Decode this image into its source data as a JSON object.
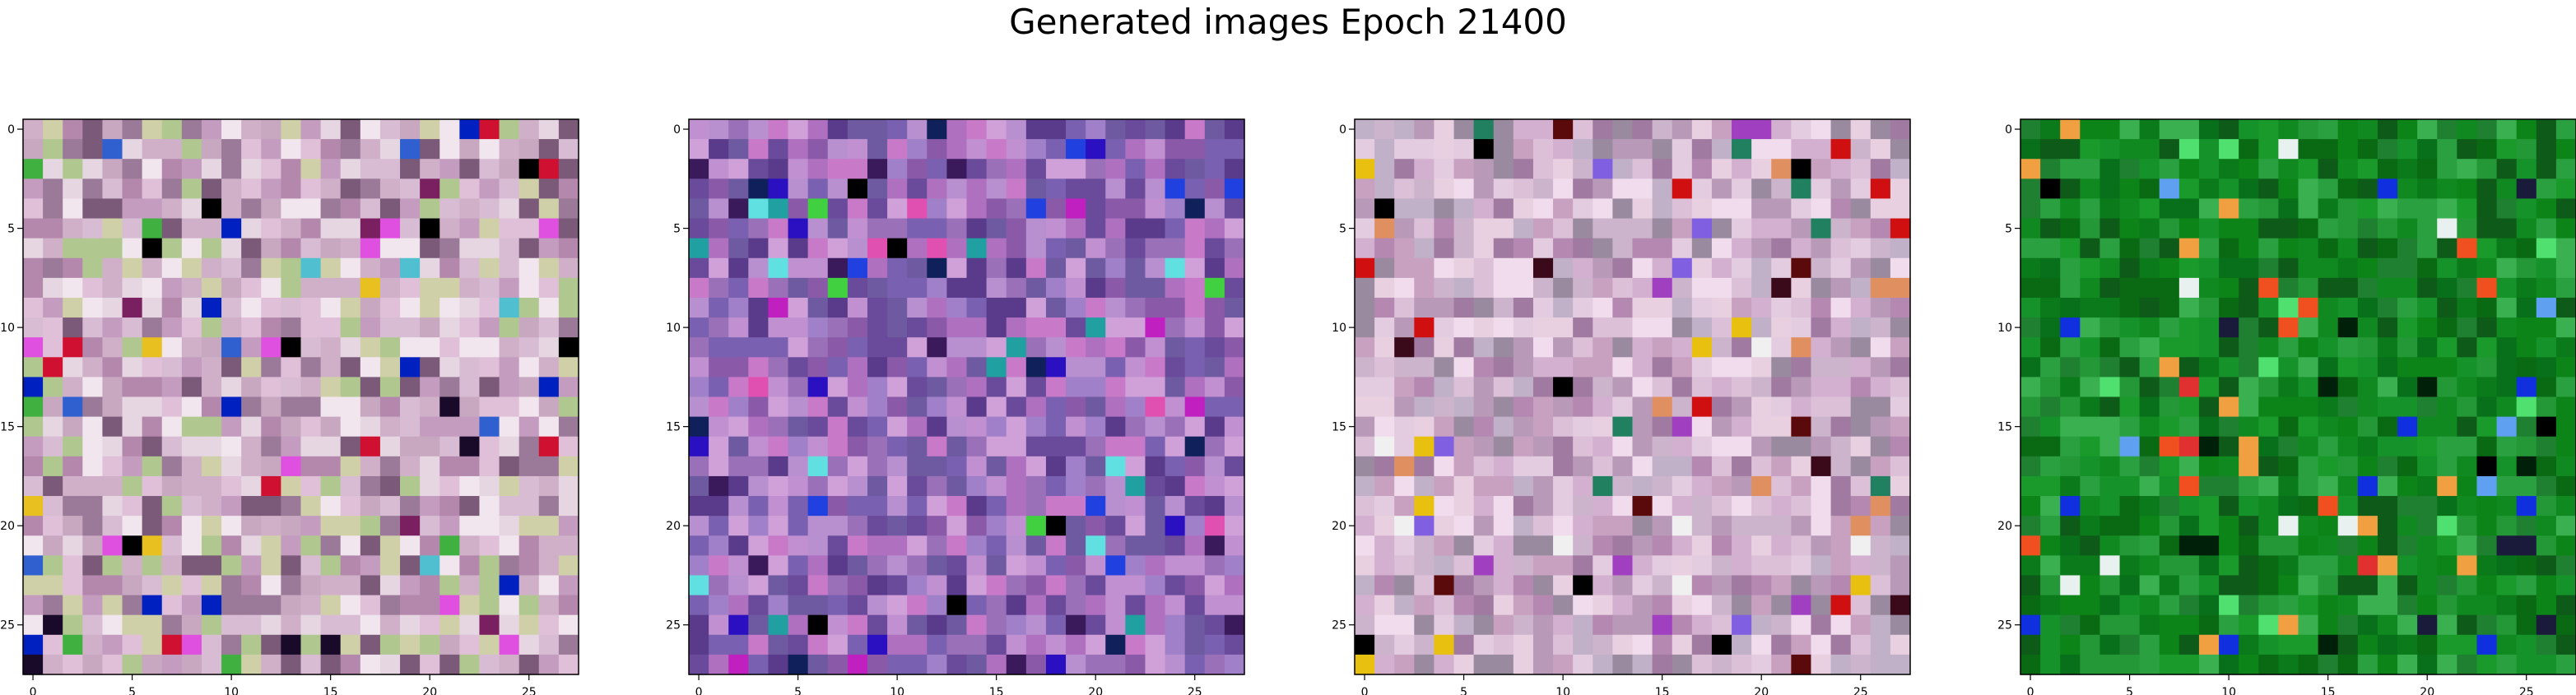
{
  "figure": {
    "title": "Generated images Epoch 21400"
  },
  "chart_data": [
    {
      "type": "heatmap",
      "rows": 28,
      "cols": 28,
      "xticks": [
        0,
        5,
        10,
        15,
        20,
        25
      ],
      "yticks": [
        0,
        5,
        10,
        15,
        20,
        25
      ],
      "xtick_labels": [
        "0",
        "5",
        "10",
        "15",
        "20",
        "25"
      ],
      "ytick_labels": [
        "0",
        "5",
        "10",
        "15",
        "20",
        "25"
      ],
      "xlim": [
        -0.5,
        27.5
      ],
      "ylim": [
        27.5,
        -0.5
      ],
      "palette": [
        "#c8a8c0",
        "#e6d6e2",
        "#d8bcd4",
        "#b488ac",
        "#f2e6ee",
        "#c49cc0",
        "#9a7a98",
        "#b0c890",
        "#d0d0a8",
        "#7a5a78",
        "#e0c0d8",
        "#cfb0c8"
      ],
      "accents": [
        "#000000",
        "#1a0a2a",
        "#0020c0",
        "#d01030",
        "#e8c020",
        "#3060d0",
        "#40b040",
        "#7a2060",
        "#50c0d0",
        "#e050e0"
      ]
    },
    {
      "type": "heatmap",
      "rows": 28,
      "cols": 28,
      "xticks": [
        0,
        5,
        10,
        15,
        20,
        25
      ],
      "yticks": [
        0,
        5,
        10,
        15,
        20,
        25
      ],
      "xtick_labels": [
        "0",
        "5",
        "10",
        "15",
        "20",
        "25"
      ],
      "ytick_labels": [
        "0",
        "5",
        "10",
        "15",
        "20",
        "25"
      ],
      "xlim": [
        -0.5,
        27.5
      ],
      "ylim": [
        27.5,
        -0.5
      ],
      "palette": [
        "#8a5aa8",
        "#b070c0",
        "#6a4a9a",
        "#c090d0",
        "#7a60b0",
        "#9a70b8",
        "#d0a0d8",
        "#5a3a8a",
        "#a080c8",
        "#b890d0",
        "#6e5aa0",
        "#c87ac8"
      ],
      "accents": [
        "#2a10c0",
        "#000000",
        "#20a0a0",
        "#40d040",
        "#c020c0",
        "#2040e0",
        "#60e0e0",
        "#10205a",
        "#e050b0",
        "#3a1a5a"
      ]
    },
    {
      "type": "heatmap",
      "rows": 28,
      "cols": 28,
      "xticks": [
        0,
        5,
        10,
        15,
        20,
        25
      ],
      "yticks": [
        0,
        5,
        10,
        15,
        20,
        25
      ],
      "xtick_labels": [
        "0",
        "5",
        "10",
        "15",
        "20",
        "25"
      ],
      "ytick_labels": [
        "0",
        "5",
        "10",
        "15",
        "20",
        "25"
      ],
      "xlim": [
        -0.5,
        27.5
      ],
      "ylim": [
        27.5,
        -0.5
      ],
      "palette": [
        "#c8a0c0",
        "#e4cce0",
        "#b488b0",
        "#d4b0d0",
        "#f0dcec",
        "#a07aa0",
        "#c0b0c8",
        "#9a8aa0",
        "#dcc0d8",
        "#b89ab8",
        "#e8d0e0",
        "#ccb4cc"
      ],
      "accents": [
        "#000000",
        "#d01010",
        "#e8c010",
        "#3a0a1a",
        "#5a0a0a",
        "#208060",
        "#a040c0",
        "#e09060",
        "#8060e0",
        "#f0f0f0"
      ]
    },
    {
      "type": "heatmap",
      "rows": 28,
      "cols": 28,
      "xticks": [
        0,
        5,
        10,
        15,
        20,
        25
      ],
      "yticks": [
        0,
        5,
        10,
        15,
        20,
        25
      ],
      "xtick_labels": [
        "0",
        "5",
        "10",
        "15",
        "20",
        "25"
      ],
      "ytick_labels": [
        "0",
        "5",
        "10",
        "15",
        "20",
        "25"
      ],
      "xlim": [
        -0.5,
        27.5
      ],
      "ylim": [
        27.5,
        -0.5
      ],
      "palette": [
        "#0a7a1a",
        "#108a20",
        "#1a9a2a",
        "#0a6a14",
        "#2aa040",
        "#0e5a18",
        "#16922a",
        "#3ab050",
        "#08701a",
        "#1e8030",
        "#0c8418",
        "#249836"
      ],
      "accents": [
        "#000000",
        "#00200a",
        "#1030e0",
        "#f05020",
        "#60a0f0",
        "#e8f0f0",
        "#f0a040",
        "#50e070",
        "#1a1a3a",
        "#e03030"
      ]
    }
  ]
}
